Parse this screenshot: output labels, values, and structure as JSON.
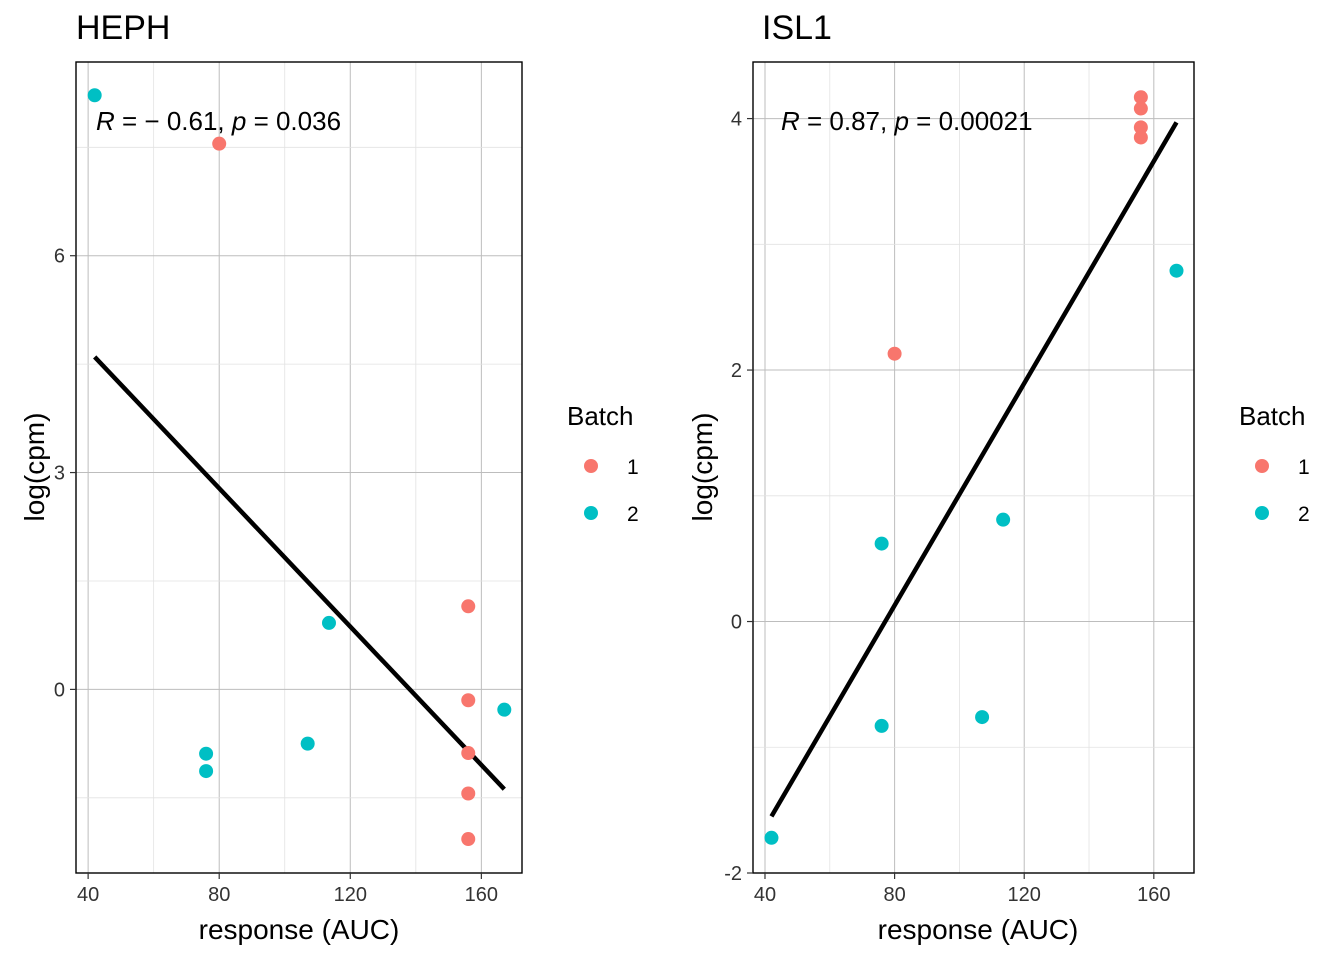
{
  "colors": {
    "batch1": "#F8766D",
    "batch2": "#00BFC4",
    "fit_line": "#000000"
  },
  "chart_data": [
    {
      "type": "scatter",
      "title": "HEPH",
      "xlabel": "response (AUC)",
      "ylabel": "log(cpm)",
      "annotation_r": "R = −0.61, p = 0.036",
      "annotation": {
        "r_label": "R",
        "r_value": " = − 0.61, ",
        "p_label": "p",
        "p_value": " = 0.036"
      },
      "xlim": [
        36.3,
        172.4
      ],
      "ylim": [
        -2.54,
        8.68
      ],
      "xticks": [
        40,
        80,
        120,
        160
      ],
      "yticks": [
        0,
        3,
        6
      ],
      "grid": true,
      "legend": {
        "title": "Batch",
        "entries": [
          "1",
          "2"
        ],
        "position": "right"
      },
      "series": [
        {
          "name": "1",
          "points": [
            [
              80,
              7.55
            ],
            [
              156,
              1.15
            ],
            [
              156,
              -0.15
            ],
            [
              156,
              -0.88
            ],
            [
              156,
              -1.44
            ],
            [
              156,
              -2.07
            ]
          ]
        },
        {
          "name": "2",
          "points": [
            [
              42,
              8.22
            ],
            [
              76,
              -0.89
            ],
            [
              76,
              -1.13
            ],
            [
              107,
              -0.75
            ],
            [
              113.5,
              0.92
            ],
            [
              167,
              -0.28
            ]
          ]
        }
      ],
      "fit_line": [
        [
          42,
          4.6
        ],
        [
          167,
          -1.38
        ]
      ]
    },
    {
      "type": "scatter",
      "title": "ISL1",
      "xlabel": "response (AUC)",
      "ylabel": "log(cpm)",
      "annotation": {
        "r_label": "R",
        "r_value": " = 0.87, ",
        "p_label": "p",
        "p_value": " = 0.00021"
      },
      "xlim": [
        36.3,
        172.4
      ],
      "ylim": [
        -2.0,
        4.45
      ],
      "xticks": [
        40,
        80,
        120,
        160
      ],
      "yticks": [
        -2,
        0,
        2,
        4
      ],
      "grid": true,
      "legend": {
        "title": "Batch",
        "entries": [
          "1",
          "2"
        ],
        "position": "right"
      },
      "series": [
        {
          "name": "1",
          "points": [
            [
              80,
              2.13
            ],
            [
              156,
              4.17
            ],
            [
              156,
              4.08
            ],
            [
              156,
              3.93
            ],
            [
              156,
              3.85
            ]
          ]
        },
        {
          "name": "2",
          "points": [
            [
              42,
              -1.72
            ],
            [
              76,
              0.62
            ],
            [
              76,
              -0.83
            ],
            [
              107,
              -0.76
            ],
            [
              113.5,
              0.81
            ],
            [
              167,
              2.79
            ]
          ]
        }
      ],
      "fit_line": [
        [
          42,
          -1.55
        ],
        [
          167,
          3.97
        ]
      ]
    }
  ]
}
